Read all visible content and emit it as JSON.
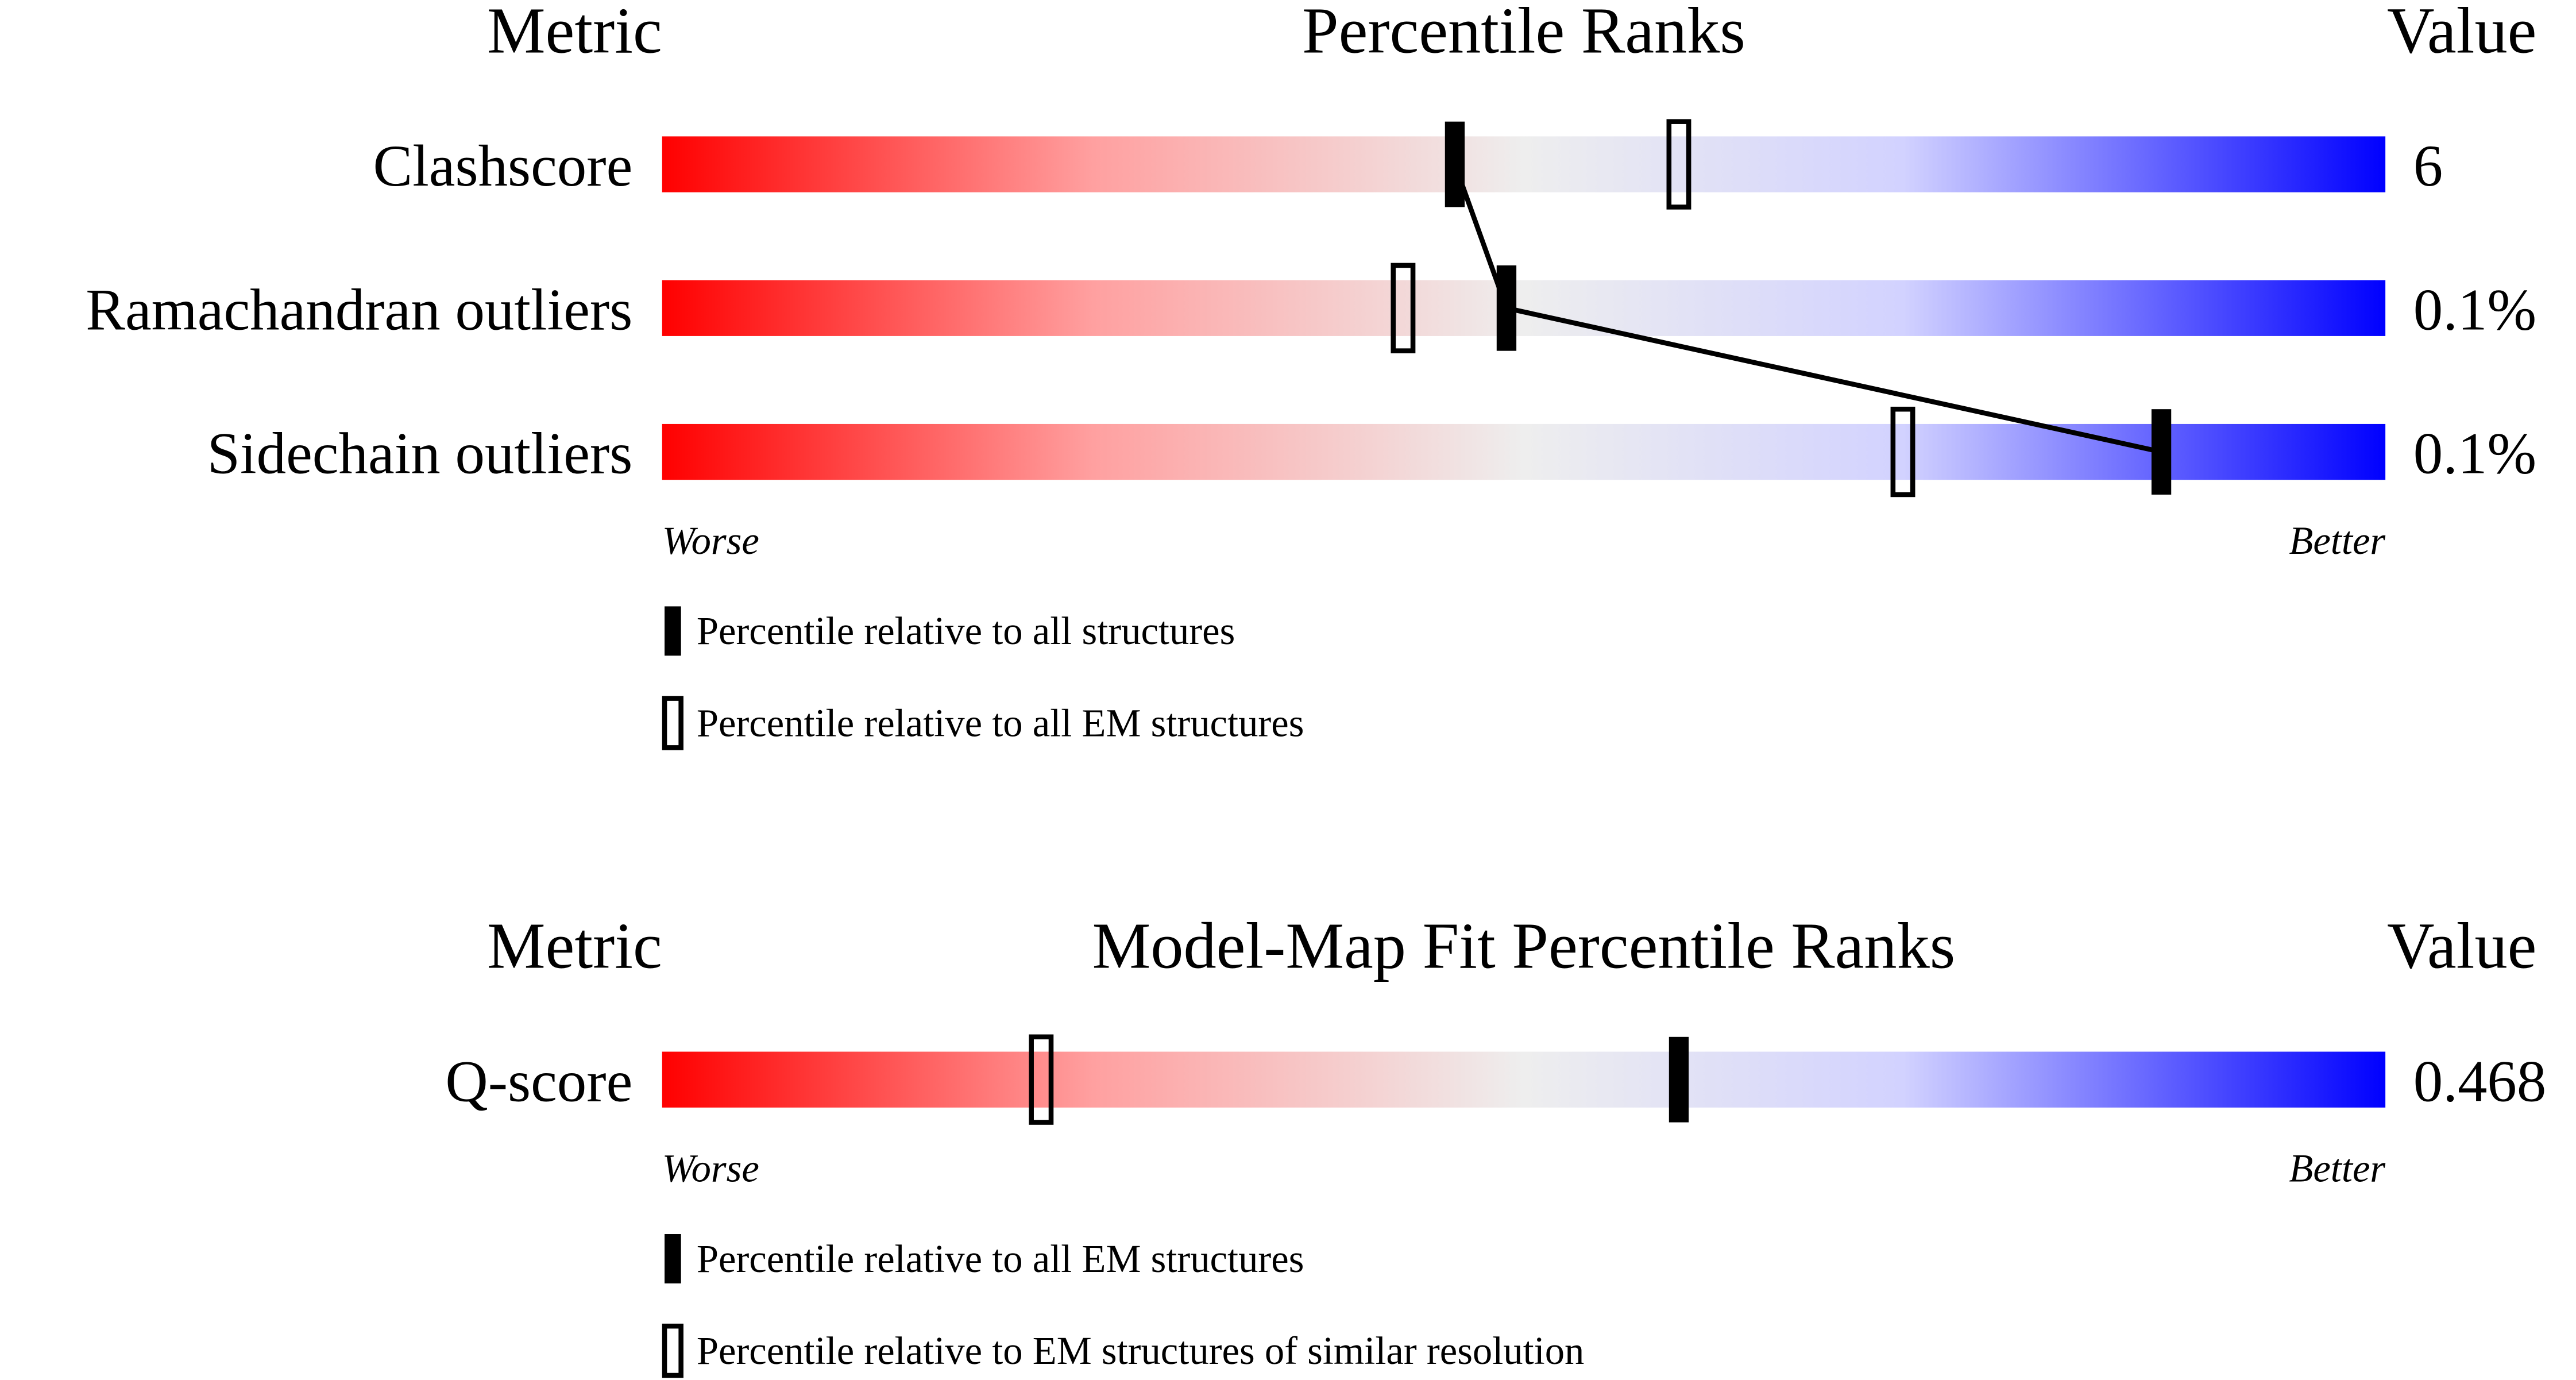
{
  "chart_data": [
    {
      "type": "percentile-slider",
      "metric_header": "Metric",
      "title": "Percentile Ranks",
      "value_header": "Value",
      "categories": [
        "Clashscore",
        "Ramachandran outliers",
        "Sidechain outliers"
      ],
      "metric_values": [
        "6",
        "0.1%",
        "0.1%"
      ],
      "xlim": [
        0,
        100
      ],
      "low_label": "Worse",
      "high_label": "Better",
      "series": [
        {
          "name": "Percentile relative to all structures",
          "color": "#000000",
          "filled": true,
          "values": [
            46,
            49,
            87
          ]
        },
        {
          "name": "Percentile relative to all EM structures",
          "color": "#000000",
          "filled": false,
          "values": [
            59,
            43,
            72
          ]
        }
      ]
    },
    {
      "type": "percentile-slider",
      "metric_header": "Metric",
      "title": "Model-Map Fit Percentile Ranks",
      "value_header": "Value",
      "categories": [
        "Q-score"
      ],
      "metric_values": [
        "0.468"
      ],
      "xlim": [
        0,
        100
      ],
      "low_label": "Worse",
      "high_label": "Better",
      "series": [
        {
          "name": "Percentile relative to all EM structures",
          "color": "#000000",
          "filled": true,
          "values": [
            59
          ]
        },
        {
          "name": "Percentile relative to EM structures of similar resolution",
          "color": "#000000",
          "filled": false,
          "values": [
            22
          ]
        }
      ]
    }
  ]
}
